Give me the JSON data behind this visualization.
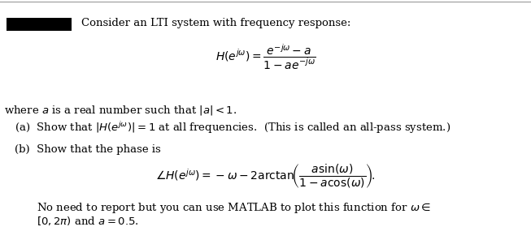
{
  "background_color": "#ffffff",
  "top_line_color": "#999999",
  "intro_text": "Consider an LTI system with frequency response:",
  "formula_H": "$H(e^{j\\omega}) = \\dfrac{e^{-j\\omega} - a}{1 - ae^{-j\\omega}}$",
  "where_text": "where $a$ is a real number such that $|a| < 1$.",
  "part_a": "(a)  Show that $|H(e^{j\\omega})| = 1$ at all frequencies.  (This is called an all-pass system.)",
  "part_b_intro": "(b)  Show that the phase is",
  "formula_phase": "$\\angle H(e^{j\\omega}) = -\\omega - 2\\mathrm{arctan}\\!\\left(\\dfrac{a\\sin(\\omega)}{1 - a\\cos(\\omega)}\\right)\\!.$",
  "note_line1": "No need to report but you can use MATLAB to plot this function for $\\omega \\in$",
  "note_line2": "$[0, 2\\pi)$ and $a = 0.5$.",
  "rect_color": "#000000"
}
